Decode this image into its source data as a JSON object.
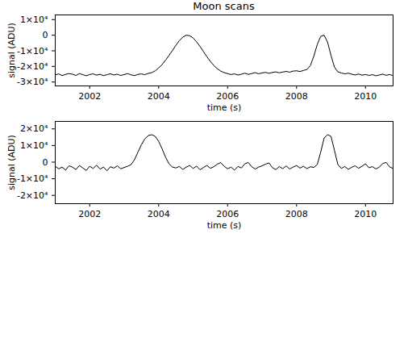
{
  "chart_data": [
    {
      "type": "line",
      "title": "Moon scans",
      "x_label": "time (s)",
      "y_label": "signal (ADU)",
      "color": "#000000",
      "xlim": [
        2001.0,
        2010.8
      ],
      "xticks": [
        2002,
        2004,
        2006,
        2008,
        2010
      ],
      "ylim": [
        -32500,
        13000
      ],
      "yticks": [
        {
          "value": -30000,
          "label": "-3×10⁴"
        },
        {
          "value": -20000,
          "label": "-2×10⁴"
        },
        {
          "value": -10000,
          "label": "-1×10⁴"
        },
        0,
        {
          "value": 10000,
          "label": "1×10⁴"
        }
      ],
      "x": [
        2001.0,
        2001.1,
        2001.2,
        2001.3,
        2001.4,
        2001.5,
        2001.6,
        2001.7,
        2001.8,
        2001.9,
        2002.0,
        2002.1,
        2002.2,
        2002.3,
        2002.4,
        2002.5,
        2002.6,
        2002.7,
        2002.8,
        2002.9,
        2003.0,
        2003.1,
        2003.2,
        2003.3,
        2003.4,
        2003.5,
        2003.6,
        2003.7,
        2003.8,
        2003.9,
        2004.0,
        2004.1,
        2004.2,
        2004.3,
        2004.4,
        2004.5,
        2004.6,
        2004.7,
        2004.8,
        2004.9,
        2005.0,
        2005.1,
        2005.2,
        2005.3,
        2005.4,
        2005.5,
        2005.6,
        2005.7,
        2005.8,
        2005.9,
        2006.0,
        2006.1,
        2006.2,
        2006.3,
        2006.4,
        2006.5,
        2006.6,
        2006.7,
        2006.8,
        2006.9,
        2007.0,
        2007.1,
        2007.2,
        2007.3,
        2007.4,
        2007.5,
        2007.6,
        2007.7,
        2007.8,
        2007.9,
        2008.0,
        2008.1,
        2008.2,
        2008.3,
        2008.4,
        2008.5,
        2008.6,
        2008.7,
        2008.8,
        2008.9,
        2009.0,
        2009.1,
        2009.2,
        2009.3,
        2009.4,
        2009.5,
        2009.6,
        2009.7,
        2009.8,
        2009.9,
        2010.0,
        2010.1,
        2010.2,
        2010.3,
        2010.4,
        2010.5,
        2010.6,
        2010.7,
        2010.8
      ],
      "values": [
        -25400,
        -24800,
        -25900,
        -25100,
        -24600,
        -25000,
        -25800,
        -24600,
        -25300,
        -26000,
        -25200,
        -24800,
        -25600,
        -25100,
        -25900,
        -25300,
        -24700,
        -25500,
        -25000,
        -25800,
        -25200,
        -24600,
        -25400,
        -25900,
        -25100,
        -24800,
        -25300,
        -24500,
        -24000,
        -22800,
        -21000,
        -18800,
        -16000,
        -13000,
        -9800,
        -6500,
        -3500,
        -1200,
        0,
        -300,
        -1800,
        -4200,
        -7200,
        -10500,
        -13800,
        -16800,
        -19400,
        -21500,
        -23000,
        -24000,
        -24600,
        -25200,
        -24800,
        -25500,
        -25000,
        -24300,
        -25100,
        -24600,
        -24000,
        -24700,
        -24200,
        -23800,
        -24400,
        -23900,
        -23500,
        -24100,
        -23600,
        -23200,
        -23700,
        -23000,
        -22800,
        -23300,
        -22600,
        -22000,
        -19500,
        -13500,
        -6000,
        -800,
        0,
        -4500,
        -13000,
        -20500,
        -23500,
        -24200,
        -24800,
        -24300,
        -25000,
        -25500,
        -24900,
        -25600,
        -25200,
        -25800,
        -25300,
        -26000,
        -25500,
        -25000,
        -25700,
        -25200,
        -25900
      ]
    },
    {
      "type": "line",
      "x_label": "time (s)",
      "y_label": "signal (ADU)",
      "color": "#000000",
      "xlim": [
        2001.0,
        2010.8
      ],
      "xticks": [
        2002,
        2004,
        2006,
        2008,
        2010
      ],
      "ylim": [
        -25000,
        24500
      ],
      "yticks": [
        {
          "value": -20000,
          "label": "-2×10⁴"
        },
        {
          "value": -10000,
          "label": "-1×10⁴"
        },
        0,
        {
          "value": 10000,
          "label": "1×10⁴"
        },
        {
          "value": 20000,
          "label": "2×10⁴"
        }
      ],
      "x": [
        2001.0,
        2001.1,
        2001.2,
        2001.3,
        2001.4,
        2001.5,
        2001.6,
        2001.7,
        2001.8,
        2001.9,
        2002.0,
        2002.1,
        2002.2,
        2002.3,
        2002.4,
        2002.5,
        2002.6,
        2002.7,
        2002.8,
        2002.9,
        2003.0,
        2003.1,
        2003.2,
        2003.3,
        2003.4,
        2003.5,
        2003.6,
        2003.7,
        2003.8,
        2003.9,
        2004.0,
        2004.1,
        2004.2,
        2004.3,
        2004.4,
        2004.5,
        2004.6,
        2004.7,
        2004.8,
        2004.9,
        2005.0,
        2005.1,
        2005.2,
        2005.3,
        2005.4,
        2005.5,
        2005.6,
        2005.7,
        2005.8,
        2005.9,
        2006.0,
        2006.1,
        2006.2,
        2006.3,
        2006.4,
        2006.5,
        2006.6,
        2006.7,
        2006.8,
        2006.9,
        2007.0,
        2007.1,
        2007.2,
        2007.3,
        2007.4,
        2007.5,
        2007.6,
        2007.7,
        2007.8,
        2007.9,
        2008.0,
        2008.1,
        2008.2,
        2008.3,
        2008.4,
        2008.5,
        2008.6,
        2008.7,
        2008.8,
        2008.9,
        2009.0,
        2009.1,
        2009.2,
        2009.3,
        2009.4,
        2009.5,
        2009.6,
        2009.7,
        2009.8,
        2009.9,
        2010.0,
        2010.1,
        2010.2,
        2010.3,
        2010.4,
        2010.5,
        2010.6,
        2010.7,
        2010.8
      ],
      "values": [
        -2500,
        -4000,
        -3000,
        -4800,
        -2200,
        -3000,
        -4500,
        -2000,
        -3500,
        -5000,
        -2500,
        -3800,
        -1800,
        -4200,
        -3000,
        -5200,
        -2800,
        -3600,
        -2200,
        -4000,
        -3200,
        -2500,
        -1500,
        1500,
        6000,
        10500,
        14000,
        16000,
        16500,
        15500,
        12500,
        8000,
        3000,
        -1000,
        -3000,
        -3500,
        -2600,
        -4400,
        -3000,
        -2000,
        -3800,
        -2400,
        -4600,
        -3200,
        -2000,
        -3700,
        -2800,
        -1200,
        -300,
        -2500,
        -4000,
        -3000,
        -4800,
        -2600,
        -3500,
        -1000,
        -200,
        -2800,
        -4200,
        -3000,
        -2200,
        -1200,
        -500,
        -3300,
        -4500,
        -2700,
        -3900,
        -2300,
        -4100,
        -3000,
        -2000,
        -3600,
        -2500,
        -3900,
        -2800,
        -3200,
        -1500,
        6000,
        14500,
        16500,
        15500,
        7000,
        -1500,
        -3800,
        -2600,
        -4300,
        -3100,
        -2200,
        -3700,
        -2500,
        -1000,
        -3400,
        -2700,
        -4100,
        -3000,
        -800,
        -200,
        -2900,
        -3800
      ]
    }
  ]
}
